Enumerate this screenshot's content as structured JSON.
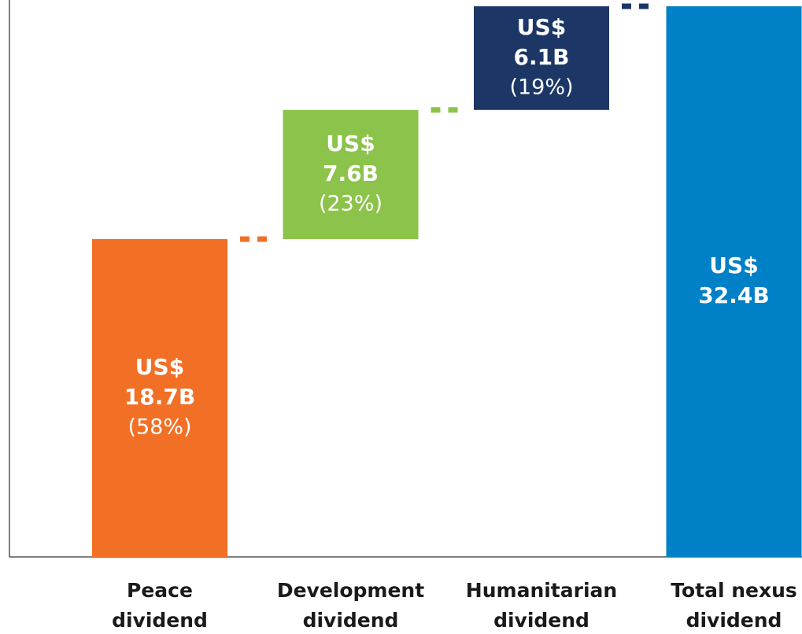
{
  "chart_data": {
    "type": "waterfall",
    "categories": [
      [
        "Peace",
        "dividend"
      ],
      [
        "Development",
        "dividend"
      ],
      [
        "Humanitarian",
        "dividend"
      ],
      [
        "Total nexus",
        "dividend"
      ]
    ],
    "values": [
      18.7,
      7.6,
      6.1,
      32.4
    ],
    "value_labels": [
      [
        "US$",
        "18.7B"
      ],
      [
        "US$",
        "7.6B"
      ],
      [
        "US$",
        "6.1B"
      ],
      [
        "US$",
        "32.4B"
      ]
    ],
    "shares": [
      58,
      23,
      19,
      null
    ],
    "share_labels": [
      "(58%)",
      "(23%)",
      "(19%)",
      null
    ],
    "is_total": [
      false,
      false,
      false,
      true
    ],
    "colors": [
      "#f26f26",
      "#8cc34a",
      "#1c3766",
      "#0080c6"
    ],
    "ylim": [
      0,
      32.4
    ]
  }
}
